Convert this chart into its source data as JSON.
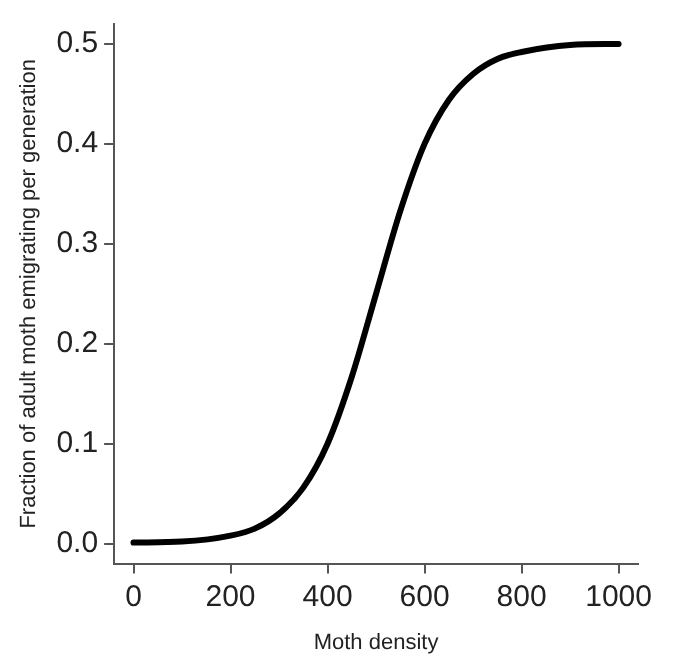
{
  "chart_data": {
    "type": "line",
    "xlabel": "Moth density",
    "ylabel": "Fraction of adult moth emigrating per generation",
    "x": [
      0,
      100,
      200,
      250,
      300,
      350,
      400,
      450,
      500,
      550,
      600,
      650,
      700,
      750,
      800,
      900,
      1000
    ],
    "series": [
      {
        "color": "#000000",
        "values": [
          0.001,
          0.002,
          0.008,
          0.015,
          0.03,
          0.056,
          0.1,
          0.167,
          0.25,
          0.333,
          0.4,
          0.444,
          0.47,
          0.485,
          0.492,
          0.499,
          0.5
        ]
      }
    ],
    "xlim": [
      -40,
      1040
    ],
    "xticks": [
      0,
      200,
      400,
      600,
      800,
      1000
    ],
    "ylim": [
      -0.02,
      0.52
    ],
    "yticks": [
      {
        "value": 0,
        "label": "0.0"
      },
      0.1,
      0.2,
      0.3,
      0.4,
      0.5
    ],
    "grid": false,
    "legend": false,
    "marker": "none",
    "line_style": "solid"
  }
}
